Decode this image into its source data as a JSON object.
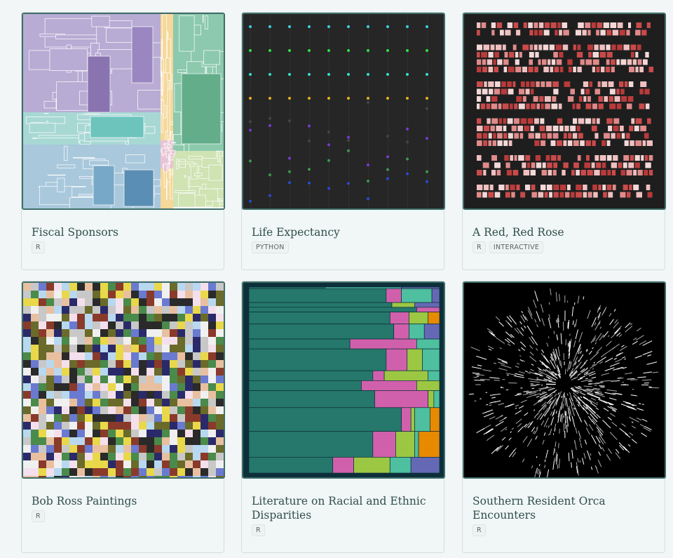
{
  "cards": [
    {
      "title": "Fiscal Sponsors",
      "tags": [
        "R"
      ],
      "thumb": "treemap"
    },
    {
      "title": "Life Expectancy",
      "tags": [
        "PYTHON"
      ],
      "thumb": "bump-chart"
    },
    {
      "title": "A Red, Red Rose",
      "tags": [
        "R",
        "INTERACTIVE"
      ],
      "thumb": "text-blocks"
    },
    {
      "title": "Bob Ross Paintings",
      "tags": [
        "R"
      ],
      "thumb": "color-mosaic"
    },
    {
      "title": "Literature on Racial and Ethnic Disparities",
      "tags": [
        "R"
      ],
      "thumb": "mosaic-bars"
    },
    {
      "title": "Southern Resident Orca Encounters",
      "tags": [
        "R"
      ],
      "thumb": "radial-lines"
    }
  ],
  "colors": {
    "card_border": "#3f6e6a",
    "title": "#2f4f4c",
    "background": "#f2f6f6"
  }
}
